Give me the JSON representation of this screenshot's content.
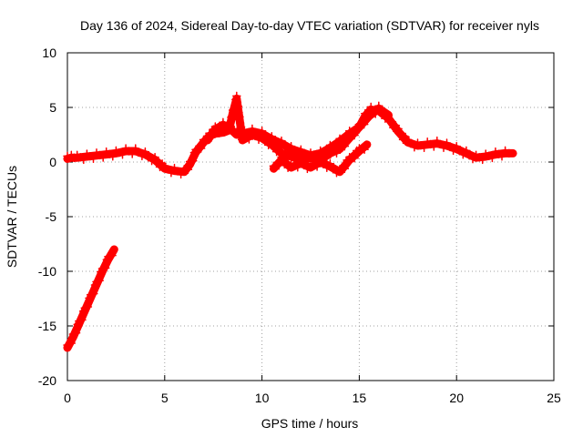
{
  "chart_data": {
    "type": "scatter",
    "title": "Day 136 of 2024, Sidereal Day-to-day VTEC variation (SDTVAR) for receiver nyls",
    "xlabel": "GPS time / hours",
    "ylabel": "SDTVAR / TECUs",
    "xlim": [
      0,
      25
    ],
    "ylim": [
      -20,
      10
    ],
    "xticks": [
      0,
      5,
      10,
      15,
      20,
      25
    ],
    "xtick_labels": [
      "0",
      "5",
      "10",
      "15",
      "20",
      "25"
    ],
    "yticks": [
      10,
      5,
      0,
      -5,
      -10,
      -15,
      -20
    ],
    "ytick_labels": [
      "10",
      "5",
      "0",
      "-5",
      "-10",
      "-15",
      "-20"
    ],
    "grid": true,
    "marker": "plus",
    "color": "#ff0000",
    "series": [
      {
        "name": "main",
        "x": [
          0.0,
          0.2,
          0.5,
          1.0,
          1.5,
          2.0,
          2.5,
          3.0,
          3.5,
          4.0,
          4.5,
          5.0,
          5.5,
          6.0,
          6.3,
          6.6,
          7.0,
          7.3,
          7.6,
          8.0,
          8.3,
          8.5,
          8.7,
          9.0,
          9.5,
          10.0,
          10.5,
          11.0,
          11.5,
          12.0,
          12.5,
          13.0,
          13.5,
          14.0,
          14.5,
          15.0,
          15.3,
          15.6,
          16.0,
          16.5,
          17.0,
          17.5,
          18.0,
          18.5,
          19.0,
          19.5,
          20.0,
          20.5,
          21.0,
          21.5,
          22.0,
          22.5,
          22.9
        ],
        "y": [
          0.3,
          0.4,
          0.4,
          0.5,
          0.6,
          0.7,
          0.8,
          1.0,
          1.0,
          0.7,
          0.2,
          -0.6,
          -0.8,
          -0.9,
          -0.2,
          0.9,
          1.8,
          2.4,
          2.6,
          2.7,
          2.9,
          4.5,
          5.8,
          2.0,
          2.5,
          2.2,
          1.6,
          0.8,
          0.5,
          0.2,
          0.4,
          0.2,
          0.8,
          1.2,
          2.2,
          3.2,
          4.2,
          4.8,
          4.7,
          4.0,
          2.8,
          1.8,
          1.5,
          1.6,
          1.7,
          1.5,
          1.2,
          0.8,
          0.4,
          0.5,
          0.7,
          0.8,
          0.8
        ]
      },
      {
        "name": "upper-branch",
        "x": [
          7.2,
          7.6,
          8.0,
          8.4,
          8.7,
          9.0,
          9.5,
          10.0,
          10.5,
          11.0,
          11.5,
          12.0,
          12.5,
          13.0,
          13.5,
          14.0,
          14.5,
          15.0,
          15.5,
          16.0,
          16.5
        ],
        "y": [
          2.0,
          3.0,
          3.4,
          3.0,
          2.5,
          2.6,
          2.8,
          2.6,
          2.1,
          1.7,
          1.2,
          0.9,
          0.6,
          0.8,
          1.3,
          1.9,
          2.6,
          3.2,
          4.2,
          4.9,
          4.3
        ]
      },
      {
        "name": "lower-branch",
        "x": [
          10.6,
          11.0,
          11.5,
          12.0,
          12.5,
          13.0,
          13.5,
          14.0,
          14.5,
          15.0,
          15.4
        ],
        "y": [
          -0.6,
          0.2,
          -0.5,
          -0.1,
          -0.5,
          0.0,
          -0.4,
          -0.9,
          0.2,
          1.0,
          1.6
        ]
      },
      {
        "name": "early-drift",
        "x": [
          0.0,
          0.3,
          0.6,
          0.9,
          1.2,
          1.5,
          1.8,
          2.1,
          2.4
        ],
        "y": [
          -17.0,
          -16.0,
          -14.8,
          -13.6,
          -12.4,
          -11.2,
          -10.0,
          -8.9,
          -8.0
        ]
      }
    ]
  }
}
